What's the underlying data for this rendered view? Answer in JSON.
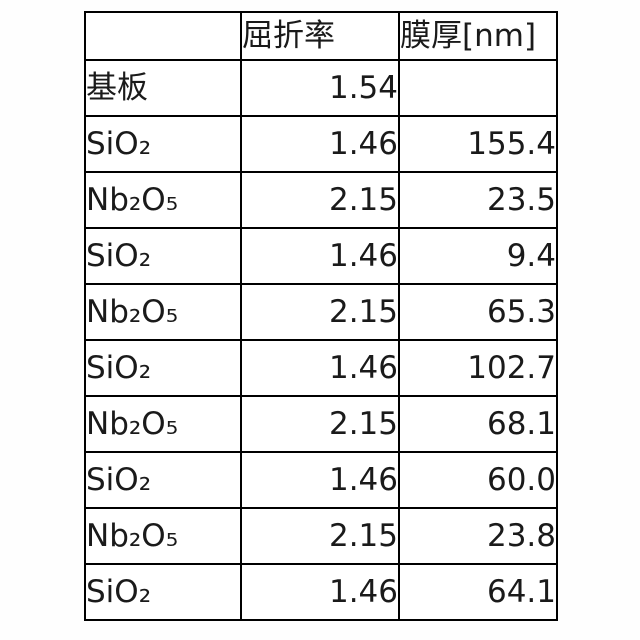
{
  "chart_data": {
    "type": "table",
    "title": "",
    "columns": [
      "",
      "屈折率",
      "膜厚[nm]"
    ],
    "rows": [
      {
        "material": "基板",
        "refractive_index": "1.54",
        "thickness_nm": ""
      },
      {
        "material": "SiO₂",
        "refractive_index": "1.46",
        "thickness_nm": "155.4"
      },
      {
        "material": "Nb₂O₅",
        "refractive_index": "2.15",
        "thickness_nm": "23.5"
      },
      {
        "material": "SiO₂",
        "refractive_index": "1.46",
        "thickness_nm": "9.4"
      },
      {
        "material": "Nb₂O₅",
        "refractive_index": "2.15",
        "thickness_nm": "65.3"
      },
      {
        "material": "SiO₂",
        "refractive_index": "1.46",
        "thickness_nm": "102.7"
      },
      {
        "material": "Nb₂O₅",
        "refractive_index": "2.15",
        "thickness_nm": "68.1"
      },
      {
        "material": "SiO₂",
        "refractive_index": "1.46",
        "thickness_nm": "60.0"
      },
      {
        "material": "Nb₂O₅",
        "refractive_index": "2.15",
        "thickness_nm": "23.8"
      },
      {
        "material": "SiO₂",
        "refractive_index": "1.46",
        "thickness_nm": "64.1"
      }
    ],
    "layout": {
      "grid": true,
      "border_color": "#000000",
      "text_color": "#1a1a1a",
      "background_color": "#ffffff",
      "numbers_alignment": "right",
      "labels_alignment": "left"
    }
  }
}
